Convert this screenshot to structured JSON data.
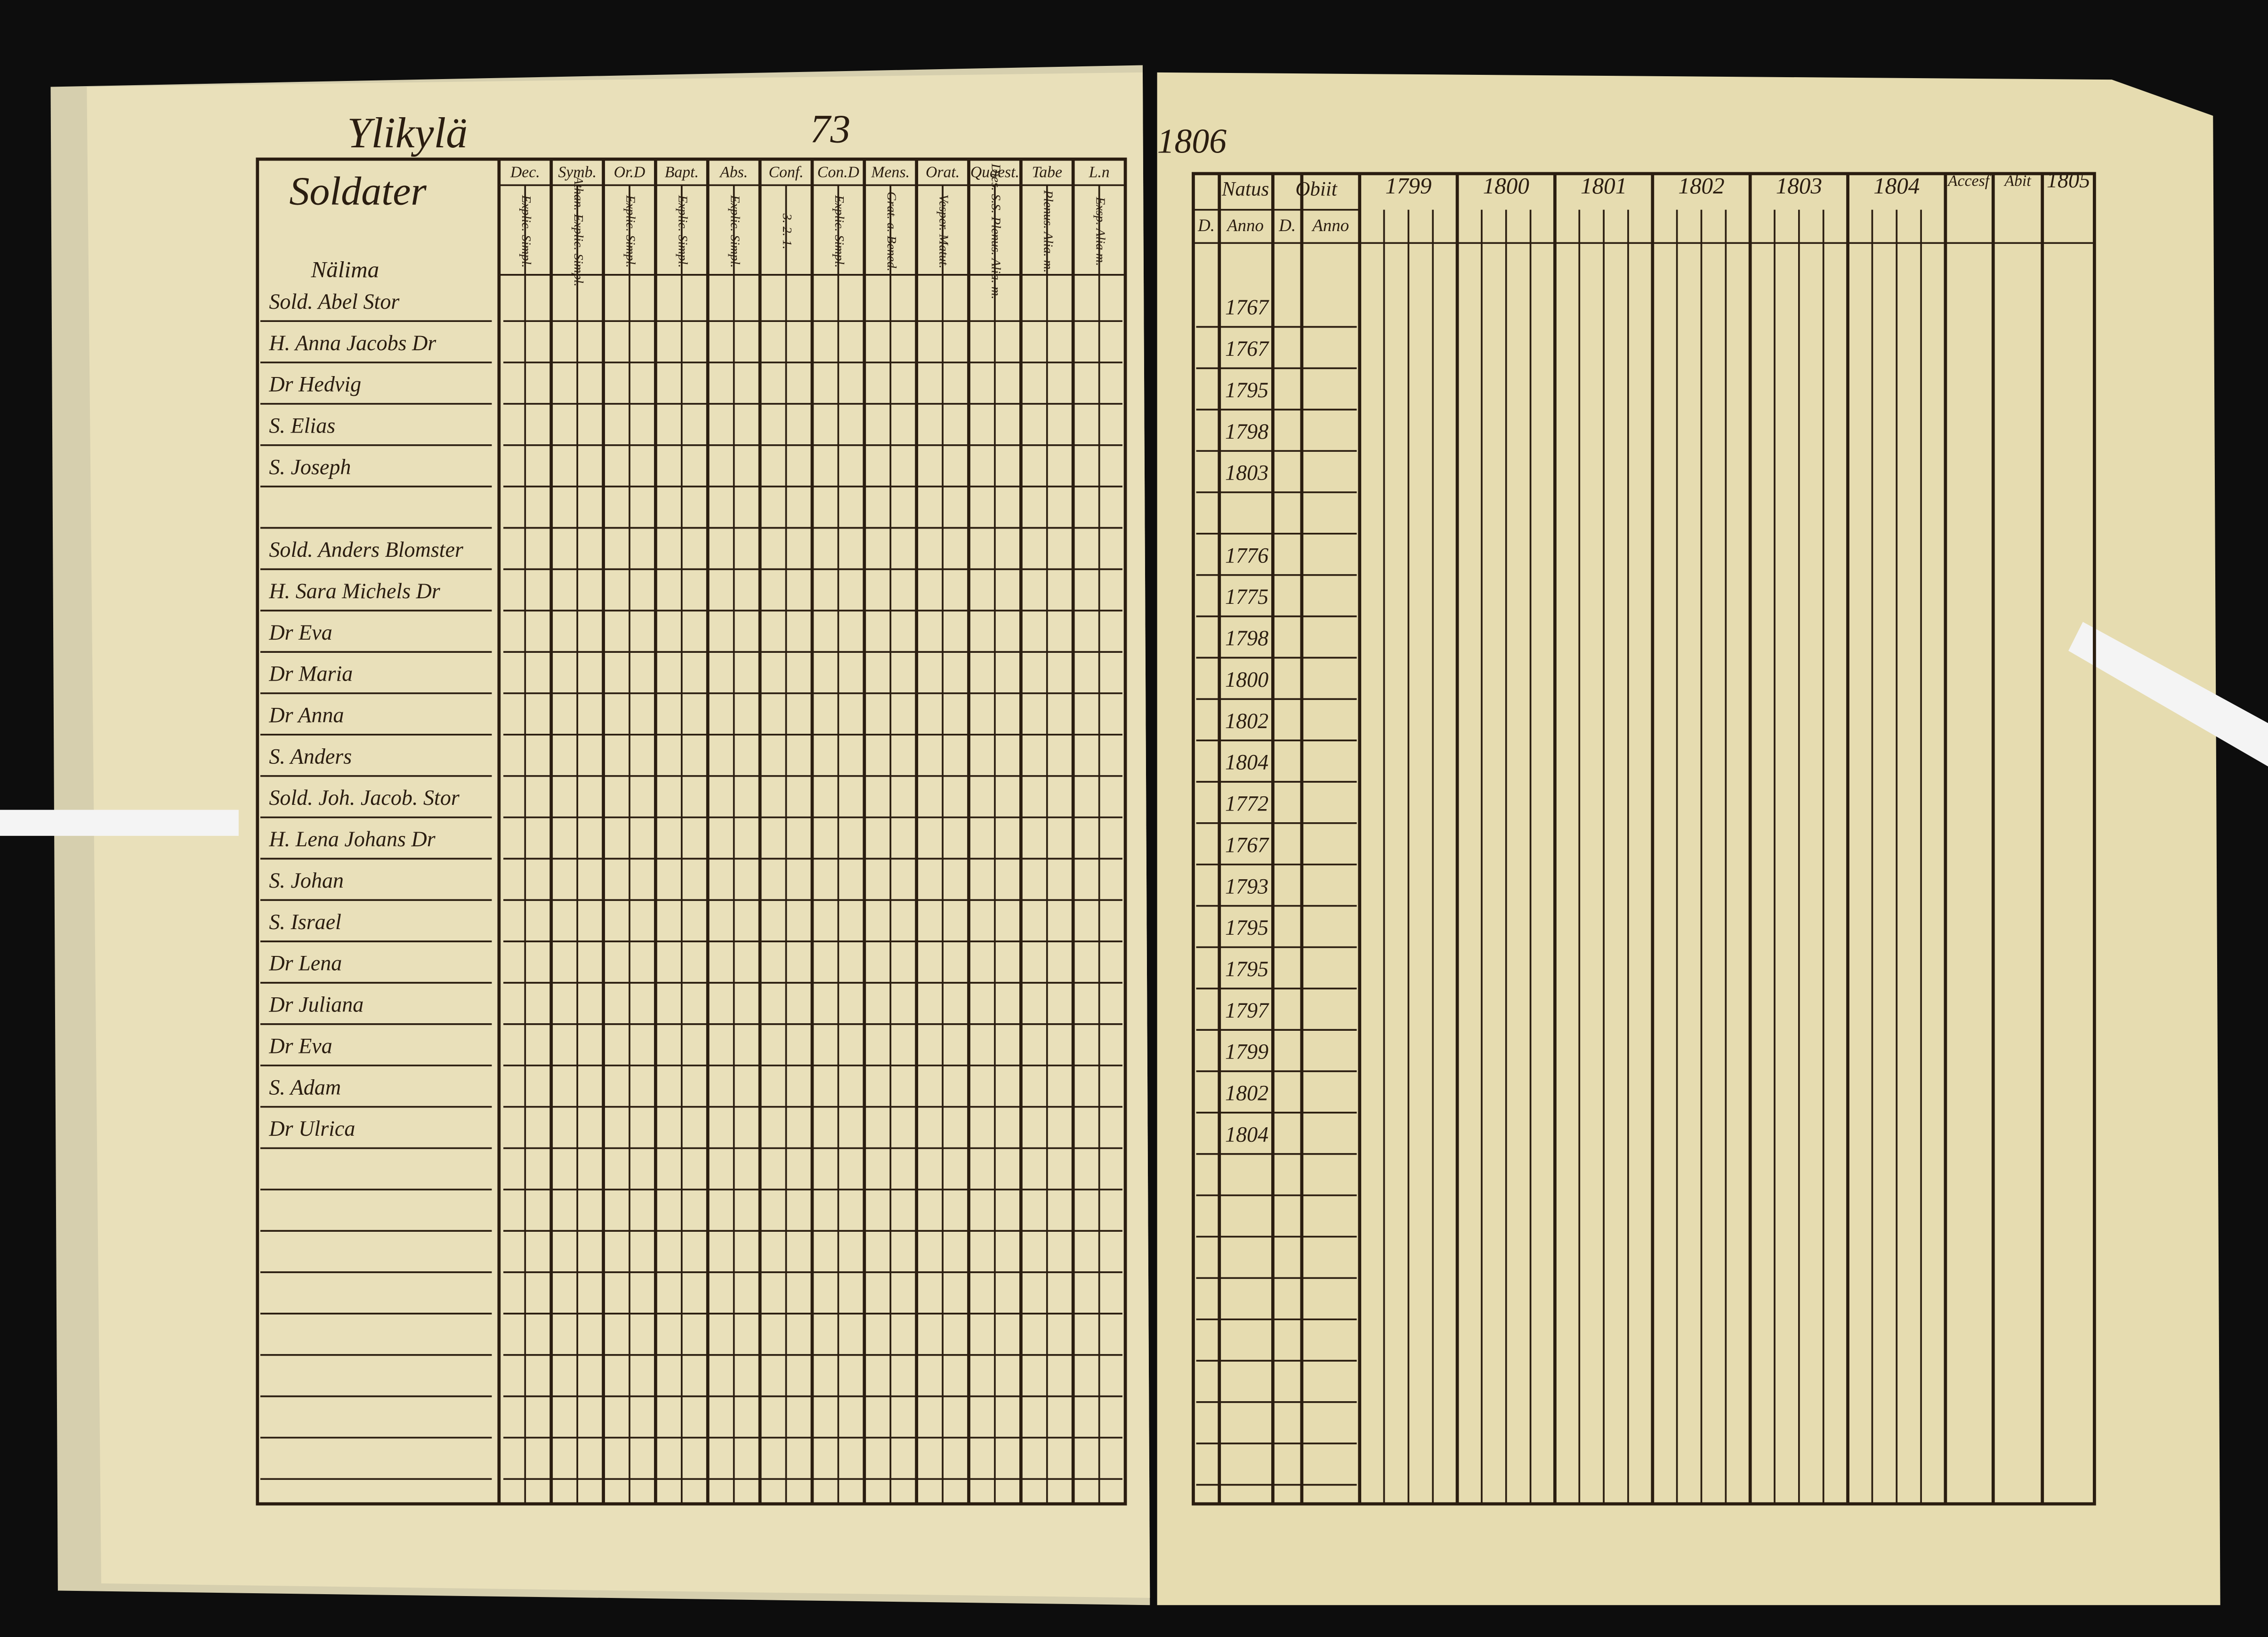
{
  "left_page": {
    "title": "Ylikylä",
    "page_number": "73",
    "table": {
      "name_header": "Soldater",
      "columns": [
        {
          "label": "Dec.",
          "sub": "Explic. Simpl."
        },
        {
          "label": "Symb.",
          "sub": "Athan. Explic. Simpl."
        },
        {
          "label": "Or.D",
          "sub": "Explic. Simpl."
        },
        {
          "label": "Bapt.",
          "sub": "Explic. Simpl."
        },
        {
          "label": "Abs.",
          "sub": "Explic. Simpl."
        },
        {
          "label": "Conf.",
          "sub": "3. 2. 1."
        },
        {
          "label": "Con.D",
          "sub": "Explic. Simpl."
        },
        {
          "label": "Mens.",
          "sub": "Grat. a. Bened."
        },
        {
          "label": "Orat.",
          "sub": "Vesper. Matut."
        },
        {
          "label": "Quaest.",
          "sub": "Dies. S.S. Plenus. Alia. m."
        },
        {
          "label": "Tabe",
          "sub": "Plenus. Alia. m."
        },
        {
          "label": "L.n",
          "sub": "Exsp. Alia m."
        }
      ],
      "village": "Nälima",
      "rows": [
        "Sold. Abel Stor",
        "H. Anna Jacobs Dr",
        "Dr Hedvig",
        "S. Elias",
        "S. Joseph",
        "Sold. Anders Blomster",
        "H. Sara Michels Dr",
        "Dr Eva",
        "Dr Maria",
        "Dr Anna",
        "S. Anders",
        "Sold. Joh. Jacob. Stor",
        "H. Lena Johans Dr",
        "S. Johan",
        "S. Israel",
        "Dr Lena",
        "Dr Juliana",
        "Dr Eva",
        "S. Adam",
        "Dr Ulrica"
      ]
    }
  },
  "right_page": {
    "page_number": "1806",
    "table": {
      "natus": "Natus",
      "obiit": "Obiit",
      "day": "D.",
      "anno": "Anno",
      "years": [
        "1799",
        "1800",
        "1801",
        "1802",
        "1803",
        "1804"
      ],
      "accessit": "Accesf",
      "abiit": "Abit",
      "extra_year": "1805",
      "birth_years": [
        "1767",
        "1767",
        "1795",
        "1798",
        "1803",
        "1776",
        "1775",
        "1798",
        "1800",
        "1802",
        "1804",
        "1772",
        "1767",
        "1793",
        "1795",
        "1795",
        "1797",
        "1799",
        "1802",
        "1804"
      ]
    }
  }
}
